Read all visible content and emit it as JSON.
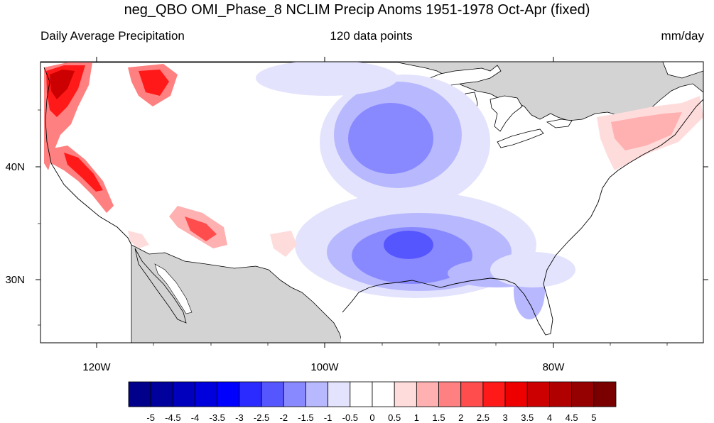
{
  "title": "neg_QBO OMI_Phase_8 NCLIM Precip Anoms 1951-1978 Oct-Apr (fixed)",
  "subtitle_left": "Daily Average Precipitation",
  "subtitle_center": "120 data points",
  "subtitle_right": "mm/day",
  "map": {
    "region": "Contiguous United States",
    "lon_ticks": [
      "120W",
      "100W",
      "80W"
    ],
    "lat_ticks": [
      "40N",
      "30N"
    ],
    "land_missing_color": "#d3d3d3",
    "anomaly_patterns": [
      {
        "area": "Pacific Northwest coast",
        "sign": "positive",
        "max_level": 5
      },
      {
        "area": "California coast and Sierra Nevada",
        "sign": "positive",
        "max_level": 4
      },
      {
        "area": "Northern Rockies (Idaho/Montana)",
        "sign": "positive",
        "max_level": 4
      },
      {
        "area": "Arizona / New Mexico mountains",
        "sign": "positive",
        "max_level": 3
      },
      {
        "area": "New England / upstate New York",
        "sign": "positive",
        "max_level": 1.5
      },
      {
        "area": "Upper Midwest (Iowa/Minnesota)",
        "sign": "negative",
        "max_level": -2
      },
      {
        "area": "Lower Mississippi Valley / Louisiana",
        "sign": "negative",
        "max_level": -2.5
      },
      {
        "area": "Gulf Coast and Florida",
        "sign": "negative",
        "max_level": -2
      }
    ]
  },
  "colorbar": {
    "labels": [
      "-5",
      "-4.5",
      "-4",
      "-3.5",
      "-3",
      "-2.5",
      "-2",
      "-1.5",
      "-1",
      "-0.5",
      "0",
      "0.5",
      "1",
      "1.5",
      "2",
      "2.5",
      "3",
      "3.5",
      "4",
      "4.5",
      "5"
    ],
    "colors": [
      "#00008b",
      "#00009c",
      "#0000bd",
      "#0000dc",
      "#0000ff",
      "#2b2bff",
      "#5656ff",
      "#8989ff",
      "#b8b8ff",
      "#e3e3fd",
      "#ffffff",
      "#ffffff",
      "#ffdcdc",
      "#ffb0b0",
      "#ff8080",
      "#ff4c4c",
      "#ff1919",
      "#ee0000",
      "#cc0000",
      "#b00000",
      "#950000",
      "#7a0000"
    ]
  }
}
